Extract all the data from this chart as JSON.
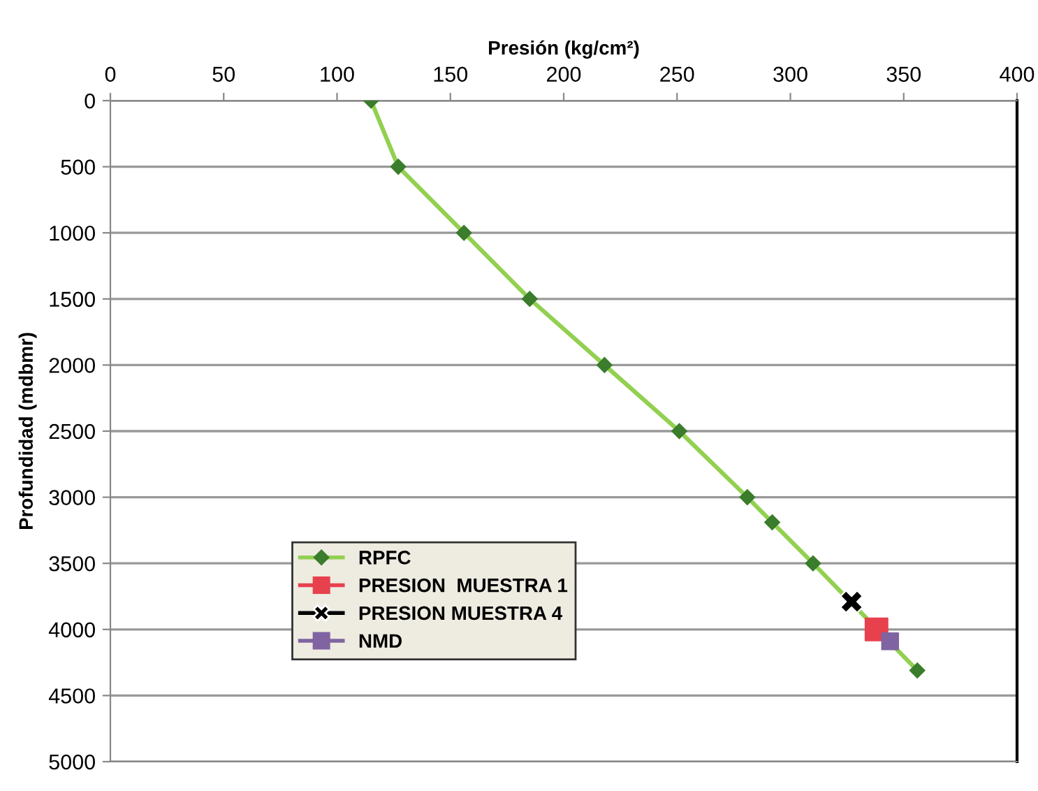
{
  "chart_data": {
    "type": "line",
    "xlabel": "Presión (kg/cm²)",
    "ylabel": "Profundidad (mdbmr)",
    "xlim": [
      0,
      400
    ],
    "xticks": [
      0,
      50,
      100,
      150,
      200,
      250,
      300,
      350,
      400
    ],
    "ylim": [
      5000,
      0
    ],
    "yticks": [
      0,
      500,
      1000,
      1500,
      2000,
      2500,
      3000,
      3500,
      4000,
      4500,
      5000
    ],
    "grid": "y",
    "legend": "bottom left",
    "series": [
      {
        "name": "RPFC",
        "color": "#92d050",
        "marker": "diamond",
        "x": [
          115,
          127,
          156,
          185,
          218,
          251,
          281,
          292,
          310,
          356
        ],
        "values": [
          0,
          500,
          1000,
          1500,
          2000,
          2500,
          3000,
          3190,
          3500,
          4310
        ]
      },
      {
        "name": "PRESION  MUESTRA 1",
        "type": "scatter",
        "color": "#e8414e",
        "marker": "square",
        "x": [
          338
        ],
        "values": [
          4000
        ]
      },
      {
        "name": "PRESION MUESTRA 4",
        "type": "scatter",
        "color": "#000000",
        "marker": "cross",
        "x": [
          327
        ],
        "values": [
          3790
        ]
      },
      {
        "name": "NMD",
        "type": "scatter",
        "color": "#8064a2",
        "marker": "square",
        "x": [
          344
        ],
        "values": [
          4090
        ]
      }
    ]
  }
}
